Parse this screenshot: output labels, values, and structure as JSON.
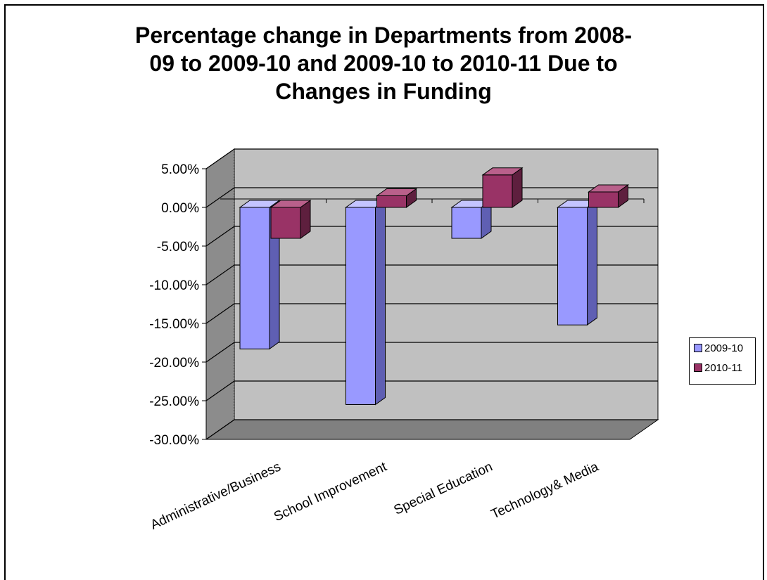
{
  "chart_data": {
    "type": "bar",
    "title_lines": [
      "Percentage change in Departments from 2008-",
      "09 to 2009-10 and 2009-10 to 2010-11 Due to",
      "Changes in Funding"
    ],
    "categories": [
      "Administrative/Business",
      "School Improvement",
      "Special Education",
      "Technology& Media"
    ],
    "series": [
      {
        "name": "2009-10",
        "values": [
          -18.3,
          -25.5,
          -4.0,
          -15.2
        ],
        "color": "#9999ff",
        "side": "#5f5fb3",
        "top": "#c4c4ff"
      },
      {
        "name": "2010-11",
        "values": [
          -4.0,
          1.5,
          4.2,
          2.0
        ],
        "color": "#993366",
        "side": "#5e1f3e",
        "top": "#b9608b"
      }
    ],
    "ylim": [
      -30,
      5
    ],
    "yticks": [
      5,
      0,
      -5,
      -10,
      -15,
      -20,
      -25,
      -30
    ],
    "ytick_labels": [
      "5.00%",
      "0.00%",
      "-5.00%",
      "-10.00%",
      "-15.00%",
      "-20.00%",
      "-25.00%",
      "-30.00%"
    ],
    "grid": true,
    "legend_position": "right",
    "wall_color": "#c0c0c0",
    "floor_color": "#808080"
  }
}
